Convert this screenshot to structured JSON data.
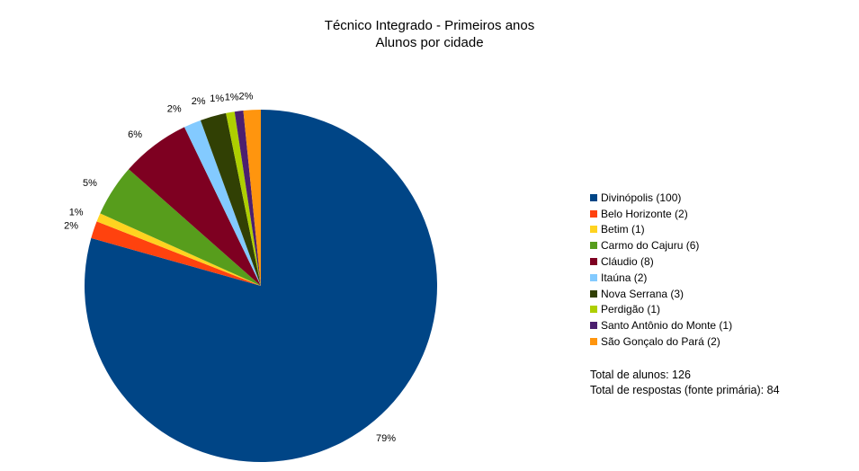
{
  "chart_data": {
    "type": "pie",
    "title": "Técnico Integrado - Primeiros anos",
    "subtitle": "Alunos por cidade",
    "start_angle_deg": 0,
    "direction": "clockwise",
    "legend_position": "right",
    "slices": [
      {
        "category": "Divinópolis (100)",
        "value": 100,
        "percent_label": "79%",
        "color": "#004586"
      },
      {
        "category": "Belo Horizonte (2)",
        "value": 2,
        "percent_label": "2%",
        "color": "#ff420e"
      },
      {
        "category": "Betim (1)",
        "value": 1,
        "percent_label": "1%",
        "color": "#ffd320"
      },
      {
        "category": "Carmo do Cajuru (6)",
        "value": 6,
        "percent_label": "5%",
        "color": "#579d1c"
      },
      {
        "category": "Cláudio (8)",
        "value": 8,
        "percent_label": "6%",
        "color": "#7e0021"
      },
      {
        "category": "Itaúna (2)",
        "value": 2,
        "percent_label": "2%",
        "color": "#83caff"
      },
      {
        "category": "Nova Serrana (3)",
        "value": 3,
        "percent_label": "2%",
        "color": "#314004"
      },
      {
        "category": "Perdigão (1)",
        "value": 1,
        "percent_label": "1%",
        "color": "#aecf00"
      },
      {
        "category": "Santo Antônio do Monte (1)",
        "value": 1,
        "percent_label": "1%",
        "color": "#4b1f6f"
      },
      {
        "category": "São Gonçalo do Pará (2)",
        "value": 2,
        "percent_label": "2%",
        "color": "#ff950e"
      }
    ],
    "notes": [
      "Total de alunos: 126",
      "Total de respostas (fonte primária): 84"
    ]
  }
}
